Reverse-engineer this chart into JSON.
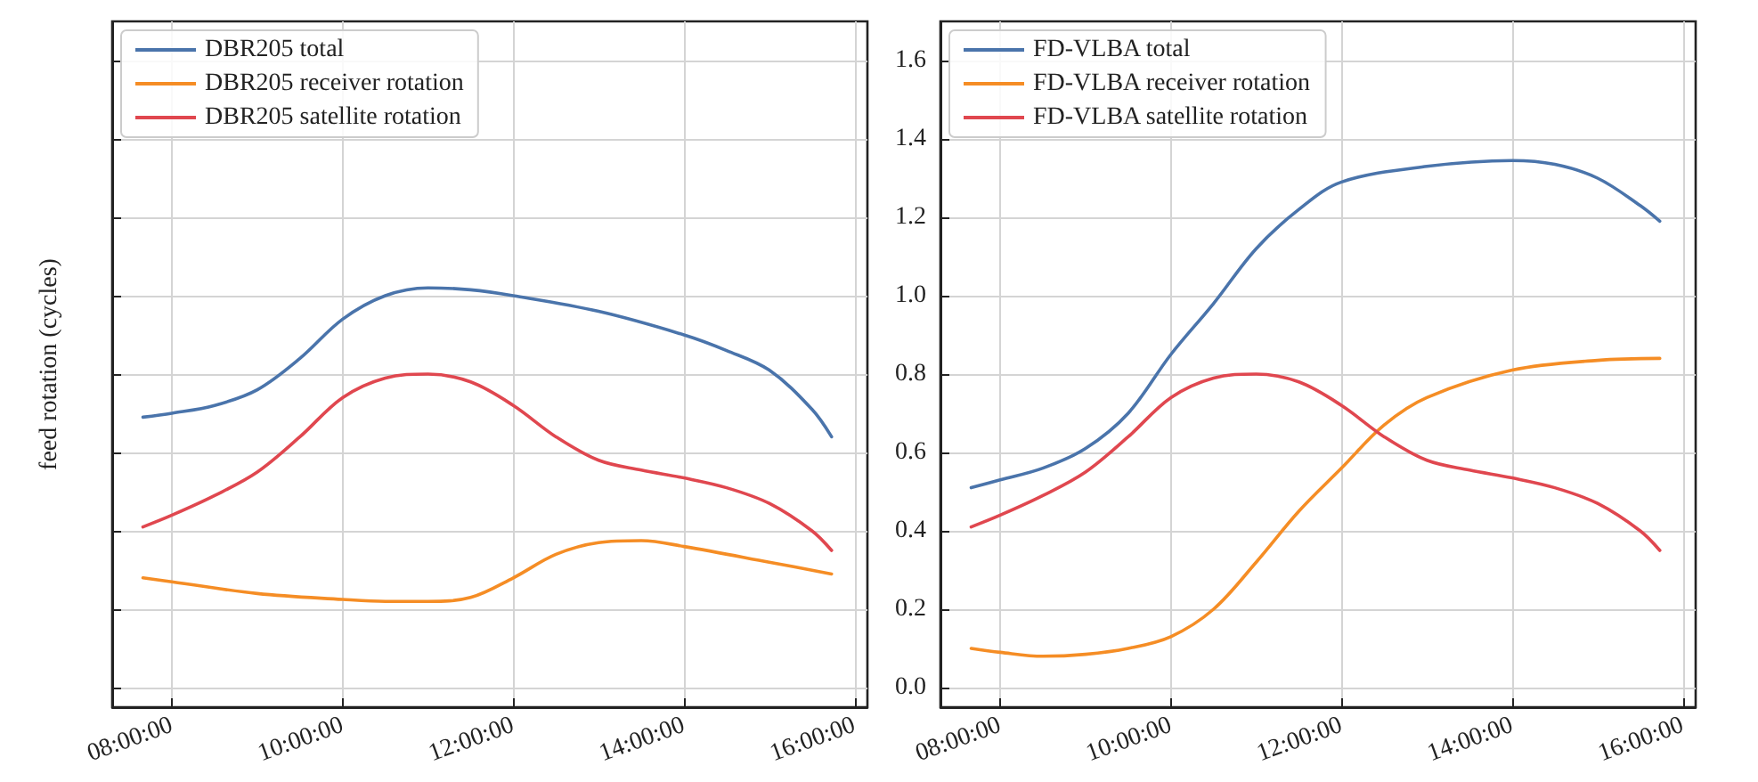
{
  "chart_data": [
    {
      "type": "line",
      "ylabel": "feed rotation (cycles)",
      "xlim": [
        7.3,
        16.15
      ],
      "ylim": [
        -0.05,
        1.7
      ],
      "xticks": [
        {
          "value": 8,
          "label": "08:00:00"
        },
        {
          "value": 10,
          "label": "10:00:00"
        },
        {
          "value": 12,
          "label": "12:00:00"
        },
        {
          "value": 14,
          "label": "14:00:00"
        },
        {
          "value": 16,
          "label": "16:00:00"
        }
      ],
      "yticks": [
        0,
        0.2,
        0.4,
        0.6,
        0.8,
        1.0,
        1.2,
        1.4,
        1.6
      ],
      "tick_labels": "x",
      "grid": true,
      "legend": "top left",
      "marker": "none",
      "series": [
        {
          "name": "DBR205 total",
          "color": "#4a74ab",
          "x": [
            7.66,
            8,
            8.5,
            9,
            9.5,
            10,
            10.5,
            11,
            11.5,
            12,
            13,
            14,
            14.5,
            15,
            15.5,
            15.73
          ],
          "values": [
            0.69,
            0.7,
            0.72,
            0.76,
            0.84,
            0.94,
            1.0,
            1.02,
            1.015,
            1.0,
            0.96,
            0.9,
            0.86,
            0.81,
            0.71,
            0.64
          ]
        },
        {
          "name": "DBR205 receiver rotation",
          "color": "#f58d25",
          "x": [
            7.66,
            8,
            9,
            10,
            10.5,
            11,
            11.5,
            12,
            12.5,
            13,
            13.5,
            14,
            15,
            15.73
          ],
          "values": [
            0.28,
            0.27,
            0.24,
            0.225,
            0.22,
            0.22,
            0.23,
            0.28,
            0.34,
            0.37,
            0.375,
            0.36,
            0.32,
            0.29
          ]
        },
        {
          "name": "DBR205 satellite rotation",
          "color": "#e0474f",
          "x": [
            7.66,
            8,
            8.5,
            9,
            9.5,
            10,
            10.5,
            11,
            11.5,
            12,
            12.5,
            13,
            13.5,
            14,
            14.5,
            15,
            15.5,
            15.73
          ],
          "values": [
            0.41,
            0.44,
            0.49,
            0.55,
            0.64,
            0.74,
            0.79,
            0.8,
            0.78,
            0.72,
            0.64,
            0.58,
            0.555,
            0.535,
            0.51,
            0.47,
            0.4,
            0.35
          ]
        }
      ]
    },
    {
      "type": "line",
      "xlim": [
        7.3,
        16.15
      ],
      "ylim": [
        -0.05,
        1.7
      ],
      "xticks": [
        {
          "value": 8,
          "label": "08:00:00"
        },
        {
          "value": 10,
          "label": "10:00:00"
        },
        {
          "value": 12,
          "label": "12:00:00"
        },
        {
          "value": 14,
          "label": "14:00:00"
        },
        {
          "value": 16,
          "label": "16:00:00"
        }
      ],
      "yticks": [
        {
          "value": 0,
          "label": "0.0"
        },
        0.2,
        0.4,
        0.6,
        0.8,
        {
          "value": 1,
          "label": "1.0"
        },
        1.2,
        1.4,
        1.6
      ],
      "grid": true,
      "legend": "top left",
      "marker": "none",
      "series": [
        {
          "name": "FD-VLBA total",
          "color": "#4a74ab",
          "x": [
            7.66,
            8,
            8.5,
            9,
            9.5,
            10,
            10.5,
            11,
            11.5,
            12,
            13,
            14,
            14.5,
            15,
            15.5,
            15.73
          ],
          "values": [
            0.51,
            0.53,
            0.56,
            0.61,
            0.7,
            0.85,
            0.98,
            1.12,
            1.22,
            1.29,
            1.33,
            1.345,
            1.335,
            1.3,
            1.23,
            1.19
          ]
        },
        {
          "name": "FD-VLBA receiver rotation",
          "color": "#f58d25",
          "x": [
            7.66,
            8,
            8.5,
            9,
            9.5,
            10,
            10.5,
            11,
            11.5,
            12,
            12.5,
            13,
            14,
            15,
            15.73
          ],
          "values": [
            0.1,
            0.09,
            0.08,
            0.085,
            0.1,
            0.13,
            0.2,
            0.32,
            0.45,
            0.56,
            0.67,
            0.74,
            0.81,
            0.835,
            0.84
          ]
        },
        {
          "name": "FD-VLBA satellite rotation",
          "color": "#e0474f",
          "x": [
            7.66,
            8,
            8.5,
            9,
            9.5,
            10,
            10.5,
            11,
            11.5,
            12,
            12.5,
            13,
            13.5,
            14,
            14.5,
            15,
            15.5,
            15.73
          ],
          "values": [
            0.41,
            0.44,
            0.49,
            0.55,
            0.64,
            0.74,
            0.79,
            0.8,
            0.78,
            0.72,
            0.64,
            0.58,
            0.555,
            0.535,
            0.51,
            0.47,
            0.4,
            0.35
          ]
        }
      ]
    }
  ]
}
